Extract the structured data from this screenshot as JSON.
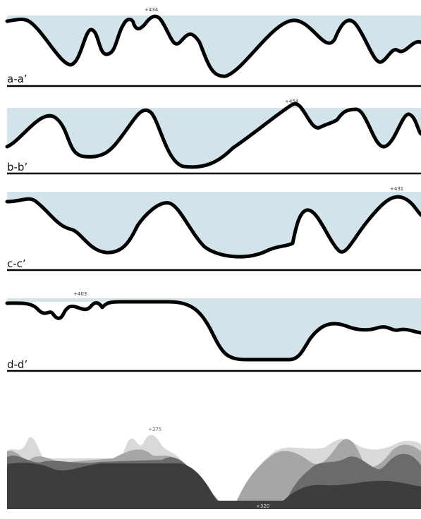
{
  "profiles": [
    {
      "label": "a-a’",
      "peak": "+434"
    },
    {
      "label": "b-b’",
      "peak": "+454"
    },
    {
      "label": "c-c’",
      "peak": "+431"
    },
    {
      "label": "d-d’",
      "peak": "+403"
    }
  ],
  "composite": {
    "peak": "+375",
    "low": "+320"
  }
}
